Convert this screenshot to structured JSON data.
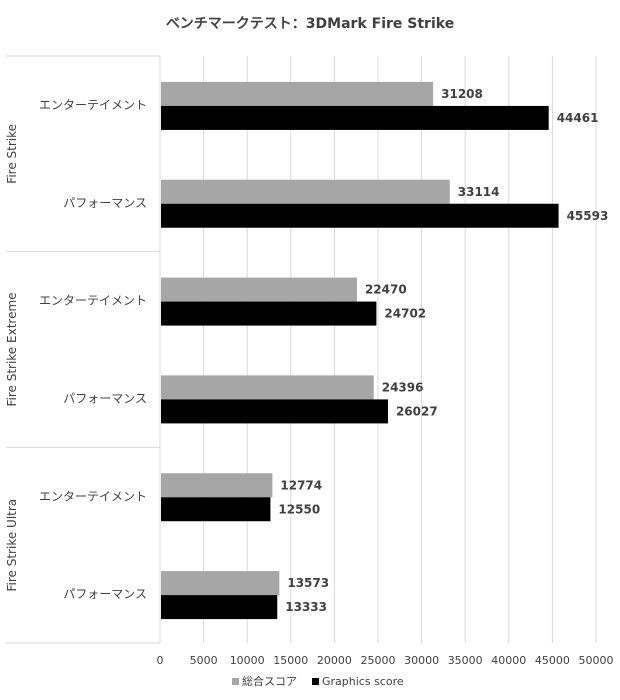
{
  "chart_data": {
    "type": "bar",
    "orientation": "horizontal",
    "title": "ベンチマークテスト：3DMark Fire Strike",
    "groups": [
      {
        "name": "Fire Strike",
        "categories": [
          "エンターテイメント",
          "パフォーマンス"
        ]
      },
      {
        "name": "Fire Strike Extreme",
        "categories": [
          "エンターテイメント",
          "パフォーマンス"
        ]
      },
      {
        "name": "Fire Strike Ultra",
        "categories": [
          "エンターテイメント",
          "パフォーマンス"
        ]
      }
    ],
    "series": [
      {
        "name": "総合スコア",
        "color": "#a6a6a6",
        "values": [
          31208,
          33114,
          22470,
          24396,
          12774,
          13573
        ]
      },
      {
        "name": "Graphics score",
        "color": "#000000",
        "values": [
          44461,
          45593,
          24702,
          26027,
          12550,
          13333
        ]
      }
    ],
    "xlim": [
      0,
      50000
    ],
    "xticks": [
      0,
      5000,
      10000,
      15000,
      20000,
      25000,
      30000,
      35000,
      40000,
      45000,
      50000
    ],
    "grid": true,
    "legend": "bottom",
    "gridline_color": "#d9d9d9"
  }
}
